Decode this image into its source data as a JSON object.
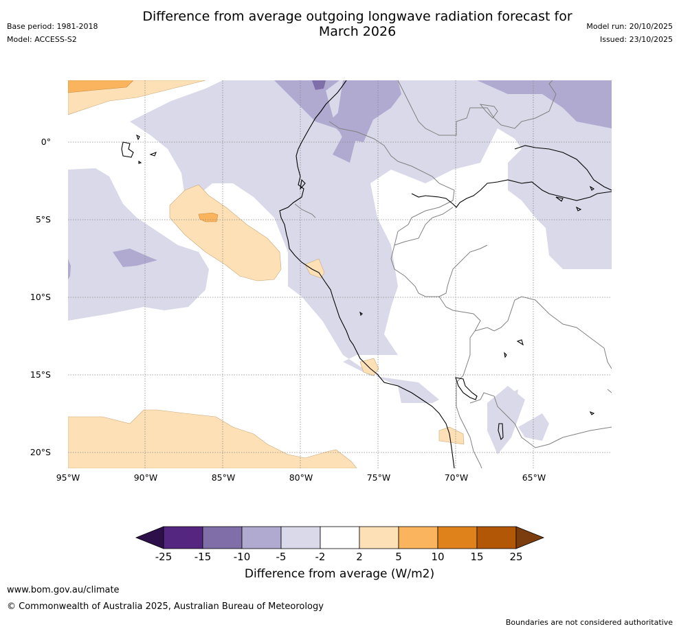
{
  "header": {
    "title_line1": "Difference from average outgoing longwave radiation forecast for",
    "title_line2": "March 2026",
    "base_period": "Base period: 1981-2018",
    "model": "Model: ACCESS-S2",
    "model_run": "Model run: 20/10/2025",
    "issued": "Issued: 23/10/2025"
  },
  "map": {
    "lat_ticks": [
      "0°",
      "5°S",
      "10°S",
      "15°S",
      "20°S"
    ],
    "lon_ticks": [
      "95°W",
      "90°W",
      "85°W",
      "80°W",
      "75°W",
      "70°W",
      "65°W"
    ]
  },
  "colorbar": {
    "labels": [
      "-25",
      "-15",
      "-10",
      "-5",
      "-2",
      "2",
      "5",
      "10",
      "15",
      "25"
    ],
    "colors": [
      "#2d0f4a",
      "#55267f",
      "#7f6ea7",
      "#b0a9d0",
      "#d9d9ea",
      "#ffffff",
      "#fde0b6",
      "#f9b45d",
      "#e0821b",
      "#b25706",
      "#7b3d0d"
    ],
    "title": "Difference from average (W/m2)"
  },
  "footer": {
    "url": "www.bom.gov.au/climate",
    "copyright": "© Commonwealth of Australia 2025, Australian Bureau of Meteorology",
    "disclaimer": "Boundaries are not considered authoritative"
  }
}
